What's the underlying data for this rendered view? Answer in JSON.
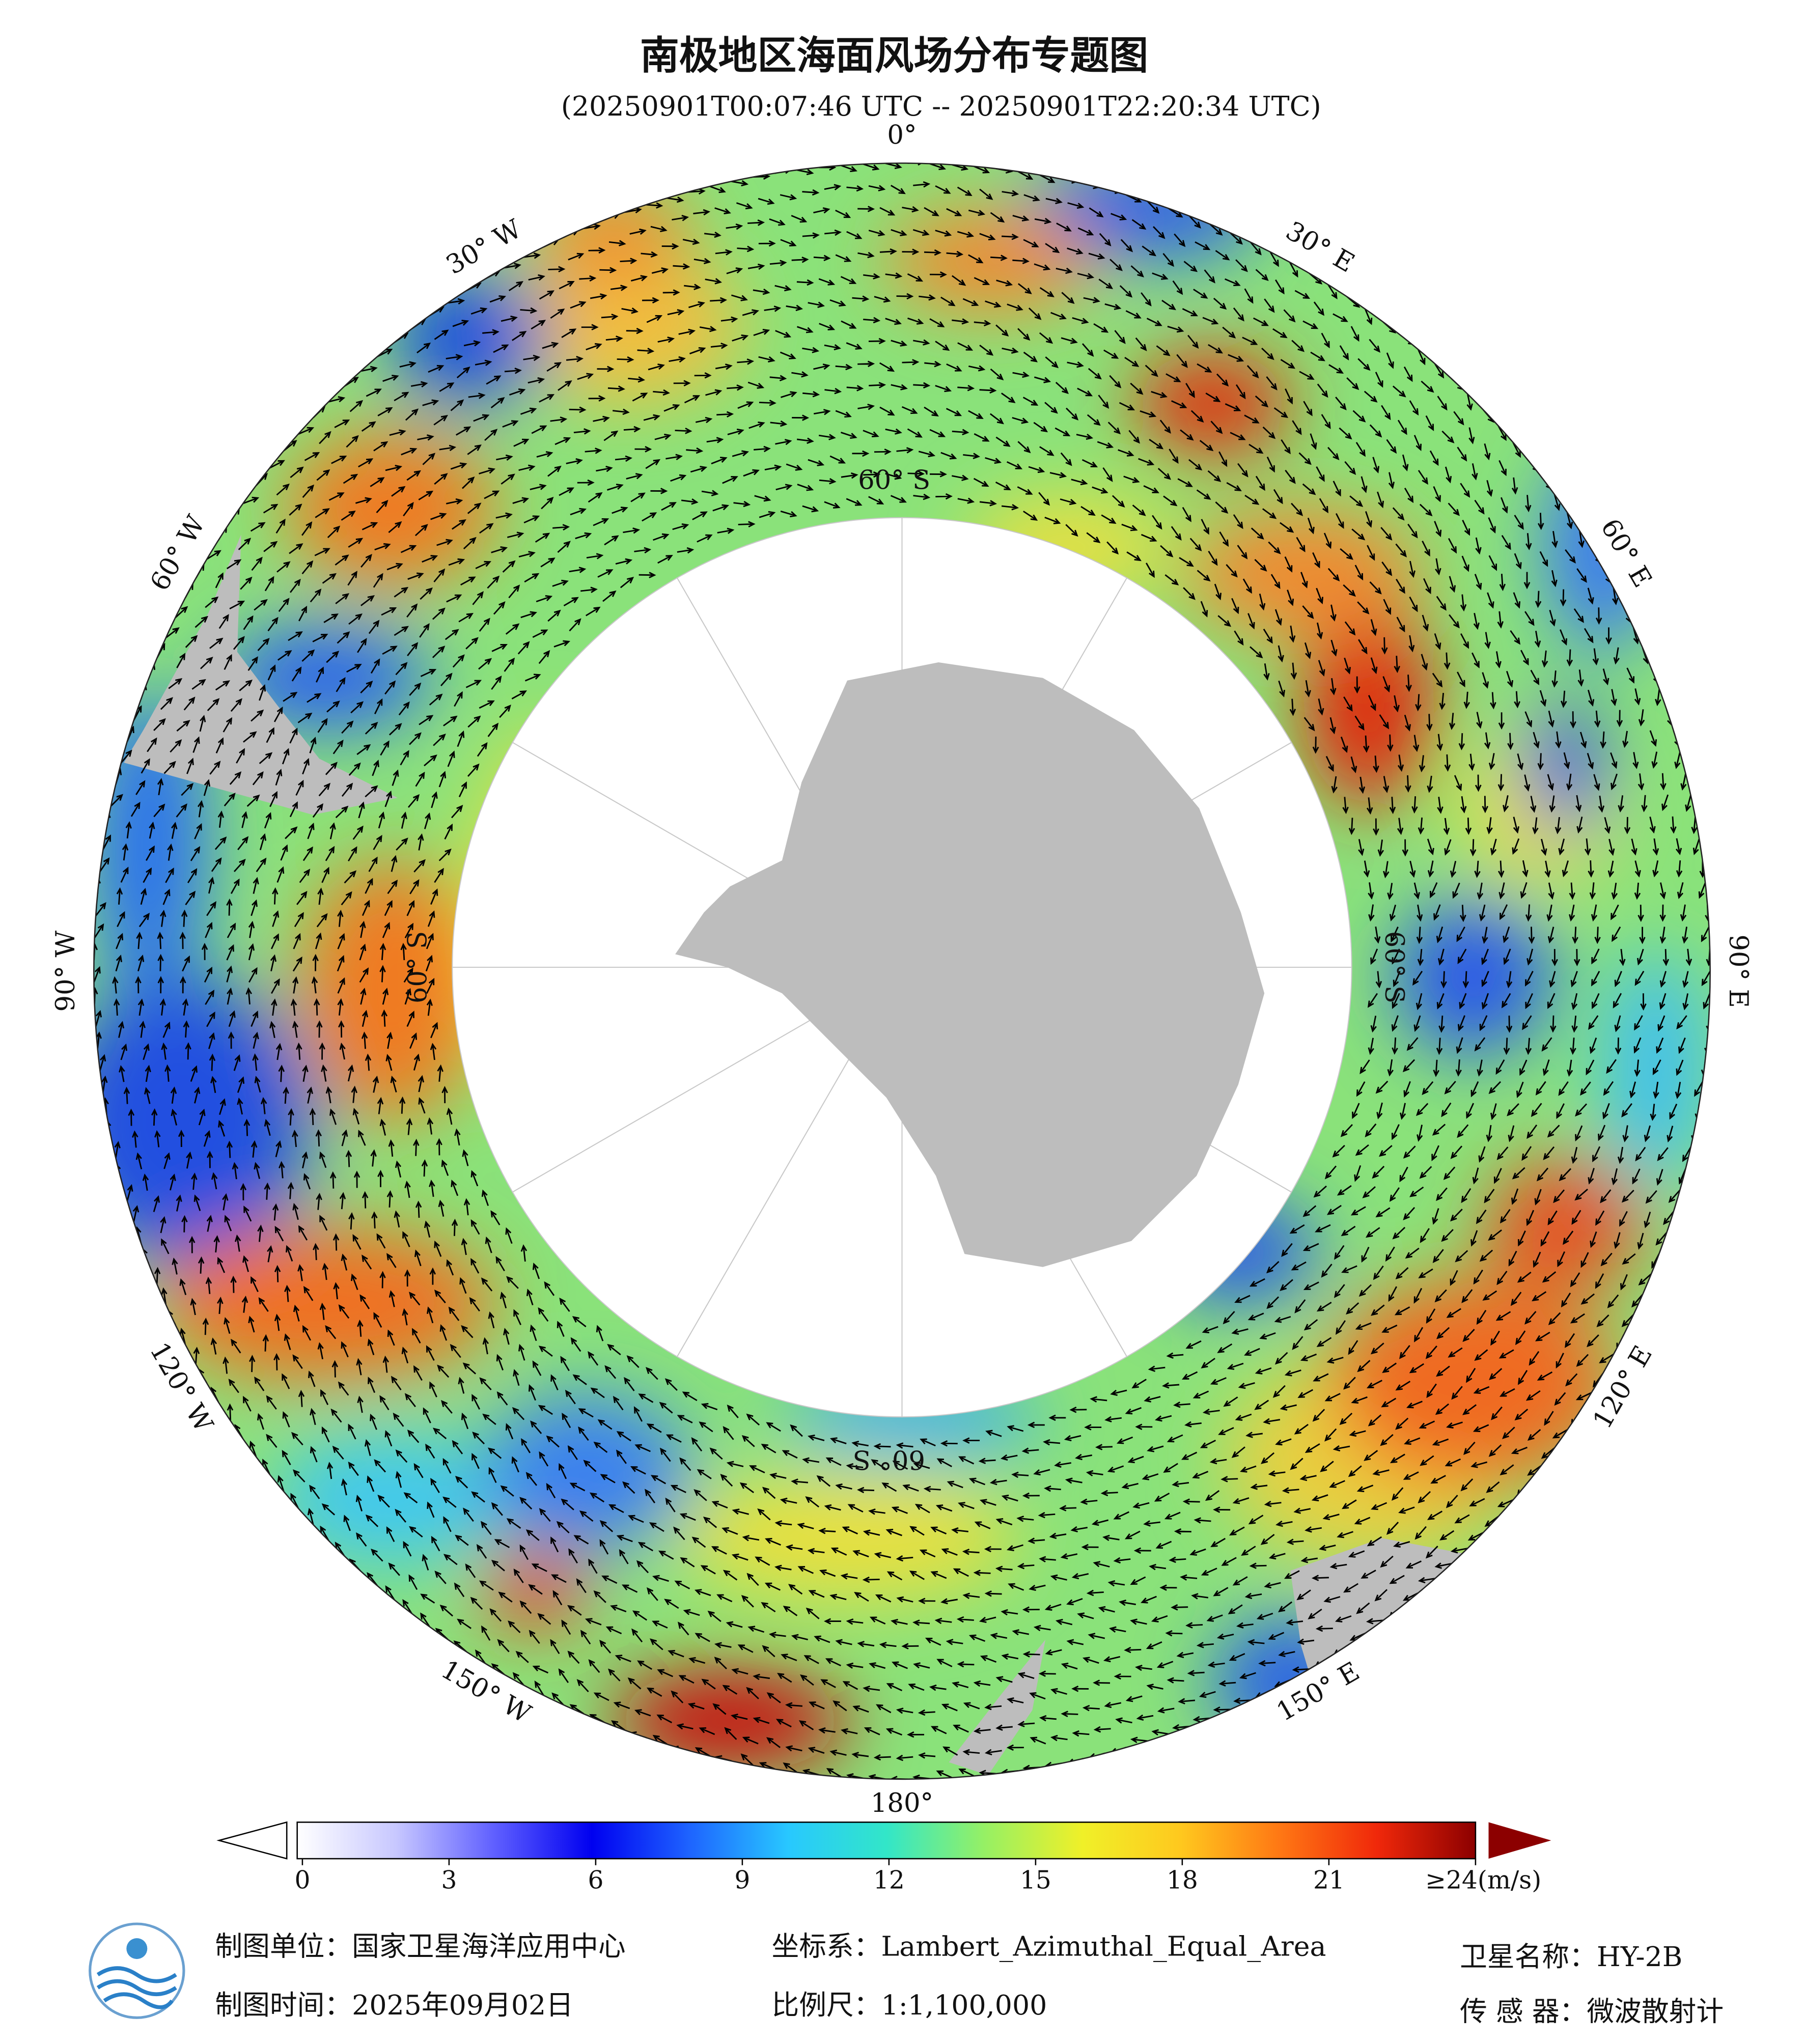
{
  "header": {
    "title": "南极地区海面风场分布专题图",
    "subtitle": "(20250901T00:07:46 UTC -- 20250901T22:20:34 UTC)"
  },
  "map": {
    "lon_labels": [
      "0°",
      "30° E",
      "60° E",
      "90° E",
      "120° E",
      "150° E",
      "180°",
      "150° W",
      "120° W",
      "90° W",
      "60° W",
      "30° W"
    ],
    "lat_labels": [
      "60° S",
      "60° S",
      "60° S",
      "60° S"
    ]
  },
  "colorbar": {
    "ticks": [
      0,
      3,
      6,
      9,
      12,
      15,
      18,
      21,
      {
        "value": 24,
        "label": "≥24(m/s)"
      }
    ],
    "colors": [
      "#ffffff",
      "#c8c8ff",
      "#6060ff",
      "#0000f0",
      "#1e64ff",
      "#28c8ff",
      "#32e6c8",
      "#96f064",
      "#f0f028",
      "#ffc81e",
      "#ff7814",
      "#f0280a",
      "#8c0000"
    ]
  },
  "footer": {
    "unit": "制图单位：国家卫星海洋应用中心",
    "date": "制图时间：2025年09月02日",
    "crs": "坐标系：Lambert_Azimuthal_Equal_Area",
    "scale": "比例尺：1:1,100,000",
    "satellite": "卫星名称：HY-2B",
    "sensor": "传 感 器：微波散射计"
  }
}
